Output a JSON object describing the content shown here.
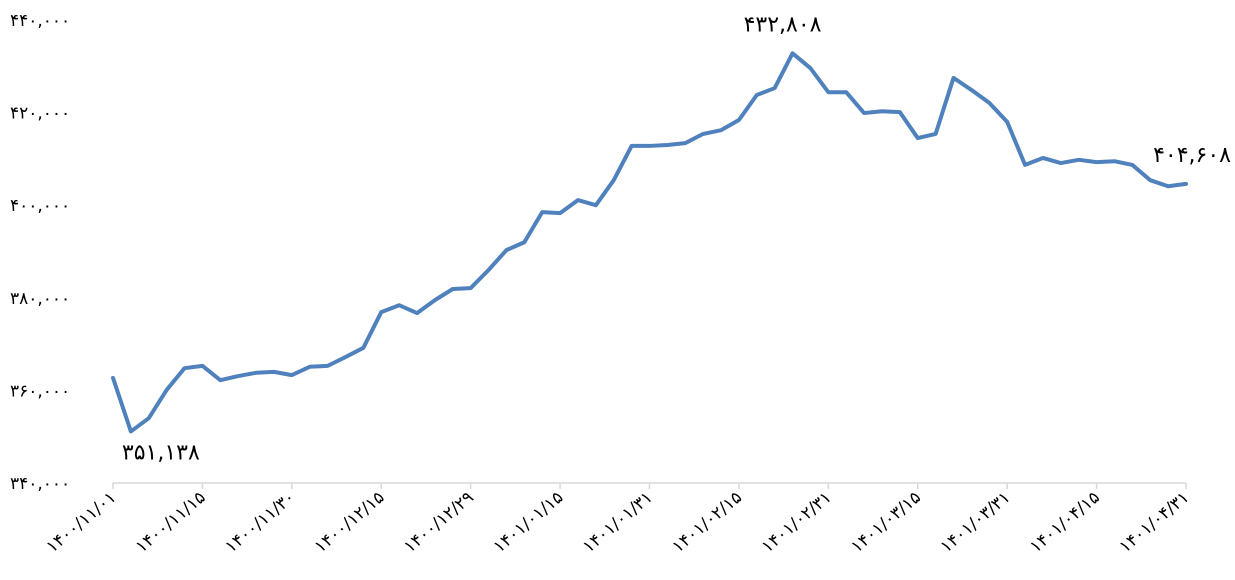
{
  "chart_data": {
    "type": "line",
    "categories": [
      "۱۴۰۰/۱۱/۰۱",
      null,
      null,
      null,
      null,
      "۱۴۰۰/۱۱/۱۵",
      null,
      null,
      null,
      null,
      "۱۴۰۰/۱۱/۳۰",
      null,
      null,
      null,
      null,
      "۱۴۰۰/۱۲/۱۵",
      null,
      null,
      null,
      null,
      "۱۴۰۰/۱۲/۲۹",
      null,
      null,
      null,
      null,
      "۱۴۰۱/۰۱/۱۵",
      null,
      null,
      null,
      null,
      "۱۴۰۱/۰۱/۳۱",
      null,
      null,
      null,
      null,
      "۱۴۰۱/۰۲/۱۵",
      null,
      null,
      null,
      null,
      "۱۴۰۱/۰۲/۳۱",
      null,
      null,
      null,
      null,
      "۱۴۰۱/۰۳/۱۵",
      null,
      null,
      null,
      null,
      "۱۴۰۱/۰۳/۳۱",
      null,
      null,
      null,
      null,
      "۱۴۰۱/۰۴/۱۵",
      null,
      null,
      null,
      null,
      "۱۴۰۱/۰۴/۳۱"
    ],
    "series": [
      {
        "color": "#4f81bd",
        "values": [
          362700,
          351138,
          354000,
          360100,
          364800,
          365300,
          362200,
          363100,
          363800,
          364000,
          363300,
          365100,
          365300,
          367200,
          369200,
          376900,
          378400,
          376700,
          379500,
          381900,
          382100,
          386000,
          390300,
          392000,
          398500,
          398300,
          401100,
          400000,
          405400,
          412800,
          412800,
          413000,
          413400,
          415400,
          416200,
          418400,
          423800,
          425300,
          432808,
          429600,
          424400,
          424400,
          419900,
          420300,
          420100,
          414500,
          415400,
          427500,
          424900,
          422100,
          418000,
          408700,
          410200,
          409100,
          409800,
          409300,
          409500,
          408700,
          405400,
          404100,
          404608
        ],
        "value_labels": [
          null,
          "۳۵۱,۱۳۸",
          null,
          null,
          null,
          null,
          null,
          null,
          null,
          null,
          null,
          null,
          null,
          null,
          null,
          null,
          null,
          null,
          null,
          null,
          null,
          null,
          null,
          null,
          null,
          null,
          null,
          null,
          null,
          null,
          null,
          null,
          null,
          null,
          null,
          null,
          null,
          null,
          "۴۳۲,۸۰۸",
          null,
          null,
          null,
          null,
          null,
          null,
          null,
          null,
          null,
          null,
          null,
          null,
          null,
          null,
          null,
          null,
          null,
          null,
          null,
          null,
          null,
          "۴۰۴,۶۰۸"
        ]
      }
    ],
    "ylim": [
      340000,
      440000
    ],
    "yticks": [
      {
        "value": 340000,
        "label": "۳۴۰,۰۰۰"
      },
      {
        "value": 360000,
        "label": "۳۶۰,۰۰۰"
      },
      {
        "value": 380000,
        "label": "۳۸۰,۰۰۰"
      },
      {
        "value": 400000,
        "label": "۴۰۰,۰۰۰"
      },
      {
        "value": 420000,
        "label": "۴۲۰,۰۰۰"
      },
      {
        "value": 440000,
        "label": "۴۴۰,۰۰۰"
      }
    ],
    "grid": false
  }
}
